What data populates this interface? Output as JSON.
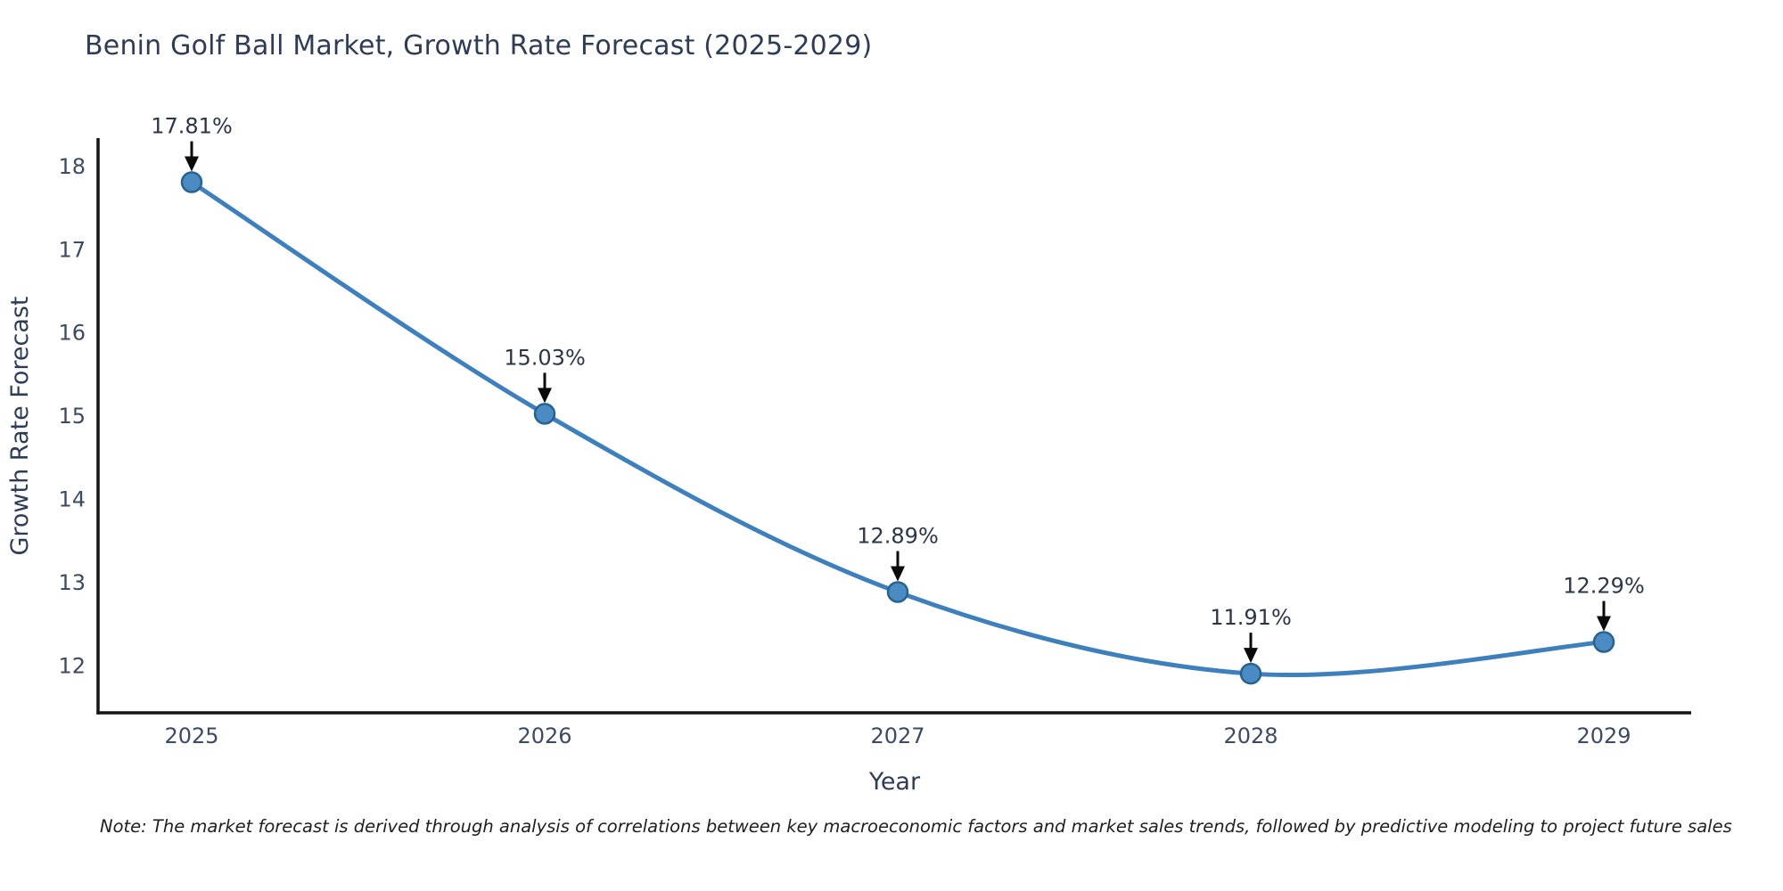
{
  "title": "Benin Golf Ball Market, Growth Rate Forecast (2025-2029)",
  "note": "Note: The market forecast is derived through analysis of correlations between key macroeconomic factors and market sales trends, followed by predictive modeling to project future sales",
  "chart_data": {
    "type": "line",
    "title": "Benin Golf Ball Market, Growth Rate Forecast (2025-2029)",
    "xlabel": "Year",
    "ylabel": "Growth Rate Forecast",
    "x": [
      2025,
      2026,
      2027,
      2028,
      2029
    ],
    "y": [
      17.81,
      15.03,
      12.89,
      11.91,
      12.29
    ],
    "labels": [
      "17.81%",
      "15.03%",
      "12.89%",
      "11.91%",
      "12.29%"
    ],
    "yticks": [
      12,
      13,
      14,
      15,
      16,
      17,
      18
    ],
    "ylim": [
      11.44,
      18.34
    ],
    "xlim": [
      2024.73,
      2029.25
    ],
    "grid": false,
    "legend": "none",
    "marker": "circle",
    "line_style": "smooth",
    "annotation_arrows": true,
    "colors": {
      "line": "#3e7fbd",
      "marker": "#4a8bc4",
      "marker_edge": "#2a628f",
      "arrow": "#0a0a0a",
      "spine": "#141414",
      "title_text": "#2e3c55",
      "tick_text": "#3d4a63",
      "annotation_text": "#2b3547",
      "note_text": "#1f1f1f",
      "background": "#ffffff"
    }
  }
}
